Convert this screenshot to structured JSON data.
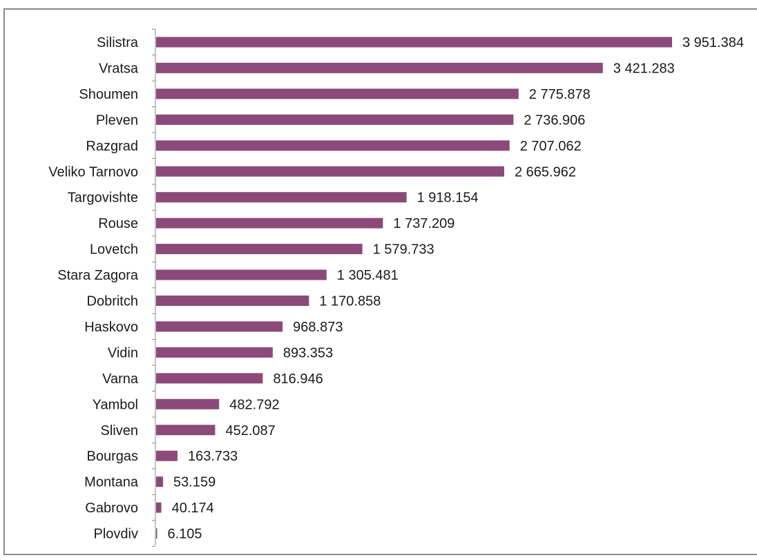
{
  "chart_data": {
    "type": "bar",
    "orientation": "horizontal",
    "title": "",
    "xlabel": "",
    "ylabel": "",
    "xlim": [
      0,
      3951.384
    ],
    "grid": false,
    "bar_color": "#8B4A7A",
    "categories": [
      "Silistra",
      "Vratsa",
      "Shoumen",
      "Pleven",
      "Razgrad",
      "Veliko Tarnovo",
      "Targovishte",
      "Rouse",
      "Lovetch",
      "Stara Zagora",
      "Dobritch",
      "Haskovo",
      "Vidin",
      "Varna",
      "Yambol",
      "Sliven",
      "Bourgas",
      "Montana",
      "Gabrovo",
      "Plovdiv"
    ],
    "values": [
      3951.384,
      3421.283,
      2775.878,
      2736.906,
      2707.062,
      2665.962,
      1918.154,
      1737.209,
      1579.733,
      1305.481,
      1170.858,
      968.873,
      893.353,
      816.946,
      482.792,
      452.087,
      163.733,
      53.159,
      40.174,
      6.105
    ],
    "value_labels": [
      "3 951.384",
      "3 421.283",
      "2 775.878",
      "2 736.906",
      "2 707.062",
      "2 665.962",
      "1 918.154",
      "1 737.209",
      "1 579.733",
      "1 305.481",
      "1 170.858",
      "968.873",
      "893.353",
      "816.946",
      "482.792",
      "452.087",
      "163.733",
      "53.159",
      "40.174",
      "6.105"
    ]
  }
}
